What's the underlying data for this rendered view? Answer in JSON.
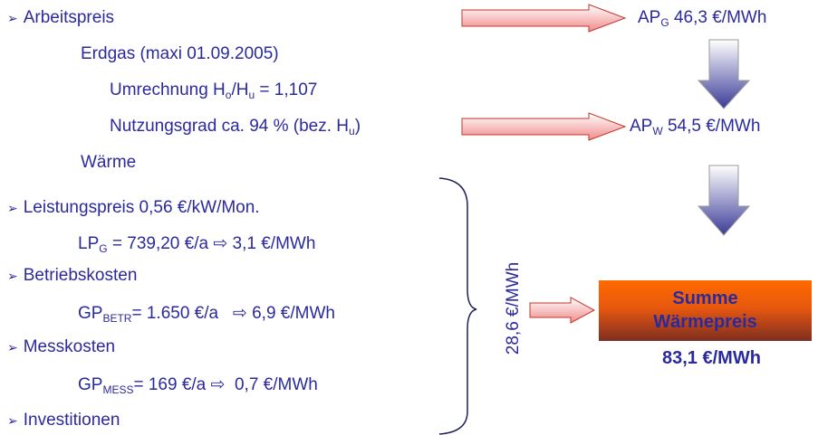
{
  "left": {
    "bullet": "➢",
    "arbeitspreis": "Arbeitspreis",
    "erdgas": "Erdgas (maxi 01.09.2005)",
    "umrechnung": {
      "pre": "Umrechnung H",
      "sub1": "o",
      "mid": "/H",
      "sub2": "u",
      "post": " = 1,107"
    },
    "nutzungsgrad": {
      "pre": "Nutzungsgrad ca. 94 % (bez. H",
      "sub": "u",
      "post": ")"
    },
    "waerme": "Wärme",
    "leistungspreis": "Leistungspreis 0,56 €/kW/Mon.",
    "lp": {
      "pre": "LP",
      "sub": "G",
      "post": " = 739,20 €/a ⇨ 3,1 €/MWh"
    },
    "betriebskosten": "Betriebskosten",
    "gp_betr": {
      "pre": "GP",
      "sub": "BETR",
      "post": "= 1.650 €/a   ⇨ 6,9 €/MWh"
    },
    "messkosten": "Messkosten",
    "gp_mess": {
      "pre": "GP",
      "sub": "MESS",
      "post": "= 169 €/a ⇨  0,7 €/MWh"
    },
    "investitionen": "Investitionen"
  },
  "right": {
    "ap_g": {
      "pre": "AP",
      "sub": "G",
      "post": " 46,3 €/MWh"
    },
    "ap_w": {
      "pre": "AP",
      "sub": "W",
      "post": " 54,5 €/MWh"
    },
    "sum_rotated": "28,6 €/MWh",
    "summe_line1": "Summe",
    "summe_line2": "Wärmepreis",
    "summe_value": "83,1 €/MWh"
  },
  "colors": {
    "text": "#2b2a9c",
    "arrow_pink": "#f08a8a",
    "arrow_blue_dark": "#3b3b99",
    "box_orange": "#ff6a00",
    "box_brown": "#7e2e22"
  }
}
